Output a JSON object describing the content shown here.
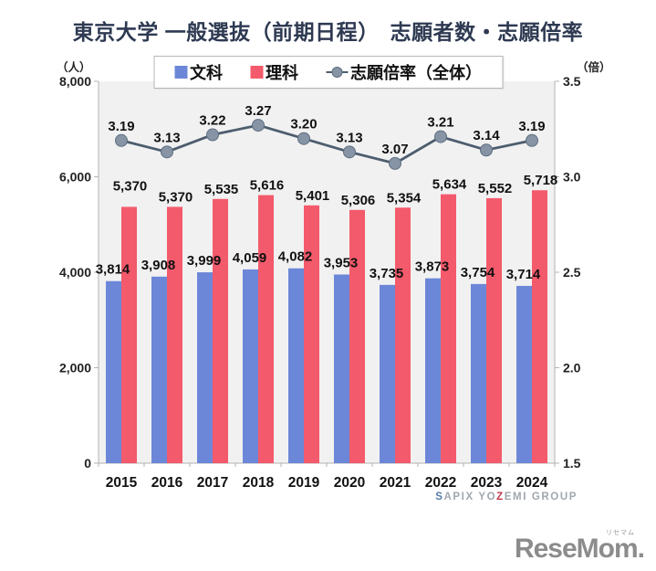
{
  "title": "東京大学 一般選抜（前期日程）　志願者数・志願倍率",
  "legend": {
    "items": [
      {
        "label": "文科",
        "type": "square",
        "color": "#6c87d8"
      },
      {
        "label": "理科",
        "type": "square",
        "color": "#f35a6b"
      },
      {
        "label": "志願倍率（全体）",
        "type": "line-dot",
        "color": "#8694a6",
        "line_color": "#4d5d6e"
      }
    ]
  },
  "chart_data": {
    "type": "bar",
    "title": "東京大学 一般選抜（前期日程）　志願者数・志願倍率",
    "categories": [
      "2015",
      "2016",
      "2017",
      "2018",
      "2019",
      "2020",
      "2021",
      "2022",
      "2023",
      "2024"
    ],
    "series": [
      {
        "name": "文科",
        "type": "bar",
        "axis": "left",
        "color": "#6c87d8",
        "values": [
          3814,
          3908,
          3999,
          4059,
          4082,
          3953,
          3735,
          3873,
          3754,
          3714
        ]
      },
      {
        "name": "理科",
        "type": "bar",
        "axis": "left",
        "color": "#f35a6b",
        "values": [
          5370,
          5370,
          5535,
          5616,
          5401,
          5306,
          5354,
          5634,
          5552,
          5718
        ]
      },
      {
        "name": "志願倍率（全体）",
        "type": "line",
        "axis": "right",
        "color": "#4d5d6e",
        "marker_color": "#8694a6",
        "marker_edge": "#5f6e80",
        "values": [
          3.19,
          3.13,
          3.22,
          3.27,
          3.2,
          3.13,
          3.07,
          3.21,
          3.14,
          3.19
        ]
      }
    ],
    "left_axis": {
      "unit": "（人）",
      "min": 0,
      "max": 8000,
      "step": 2000
    },
    "right_axis": {
      "unit": "（倍）",
      "min": 1.5,
      "max": 3.5,
      "step": 0.5
    },
    "grid": false,
    "legend_position": "top",
    "plot_bg": "#f1f1f1",
    "axis_color": "#b3b3b3",
    "label_color": "#111111"
  },
  "footer": {
    "brand_segments": [
      {
        "text": "S",
        "color": "#567ba8"
      },
      {
        "text": "APIX YO",
        "color": "#a0a7ae"
      },
      {
        "text": "Z",
        "color": "#c13a4e"
      },
      {
        "text": "EMI GROUP",
        "color": "#a0a7ae"
      }
    ]
  },
  "logo": {
    "ruby": "リセマム",
    "text": "ReseMom",
    "dot": "."
  }
}
